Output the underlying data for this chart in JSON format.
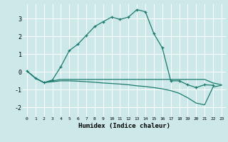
{
  "title": "",
  "xlabel": "Humidex (Indice chaleur)",
  "bg_color": "#cce8e8",
  "grid_color": "#ffffff",
  "line_color": "#1a7a6e",
  "xlim": [
    -0.5,
    23.5
  ],
  "ylim": [
    -2.5,
    3.8
  ],
  "yticks": [
    -2,
    -1,
    0,
    1,
    2,
    3
  ],
  "xticks": [
    0,
    1,
    2,
    3,
    4,
    5,
    6,
    7,
    8,
    9,
    10,
    11,
    12,
    13,
    14,
    15,
    16,
    17,
    18,
    19,
    20,
    21,
    22,
    23
  ],
  "series": [
    {
      "x": [
        0,
        1,
        2,
        3,
        4,
        5,
        6,
        7,
        8,
        9,
        10,
        11,
        12,
        13,
        14,
        15,
        16,
        17,
        18,
        19,
        20,
        21,
        22,
        23
      ],
      "y": [
        0.05,
        -0.35,
        -0.6,
        -0.55,
        -0.5,
        -0.5,
        -0.52,
        -0.55,
        -0.58,
        -0.62,
        -0.65,
        -0.68,
        -0.72,
        -0.78,
        -0.82,
        -0.88,
        -0.95,
        -1.05,
        -1.2,
        -1.45,
        -1.75,
        -1.85,
        -0.85,
        -0.75
      ],
      "marker": null,
      "lw": 0.9
    },
    {
      "x": [
        0,
        1,
        2,
        3,
        4,
        5,
        6,
        7,
        8,
        9,
        10,
        11,
        12,
        13,
        14,
        15,
        16,
        17,
        18,
        19,
        20,
        21,
        22,
        23
      ],
      "y": [
        0.05,
        -0.35,
        -0.6,
        -0.5,
        -0.42,
        -0.42,
        -0.42,
        -0.42,
        -0.42,
        -0.42,
        -0.42,
        -0.42,
        -0.42,
        -0.42,
        -0.42,
        -0.42,
        -0.42,
        -0.42,
        -0.42,
        -0.42,
        -0.42,
        -0.42,
        -0.62,
        -0.72
      ],
      "marker": null,
      "lw": 0.9
    },
    {
      "x": [
        0,
        1,
        2,
        3,
        4,
        5,
        6,
        7,
        8,
        9,
        10,
        11,
        12,
        13,
        14,
        15,
        16,
        17,
        18,
        19,
        20,
        21,
        22
      ],
      "y": [
        0.05,
        -0.35,
        -0.6,
        -0.45,
        0.3,
        1.2,
        1.55,
        2.05,
        2.55,
        2.82,
        3.08,
        2.95,
        3.08,
        3.5,
        3.38,
        2.15,
        1.35,
        -0.5,
        -0.5,
        -0.72,
        -0.88,
        -0.72,
        -0.75
      ],
      "marker": "+",
      "lw": 0.9
    }
  ]
}
